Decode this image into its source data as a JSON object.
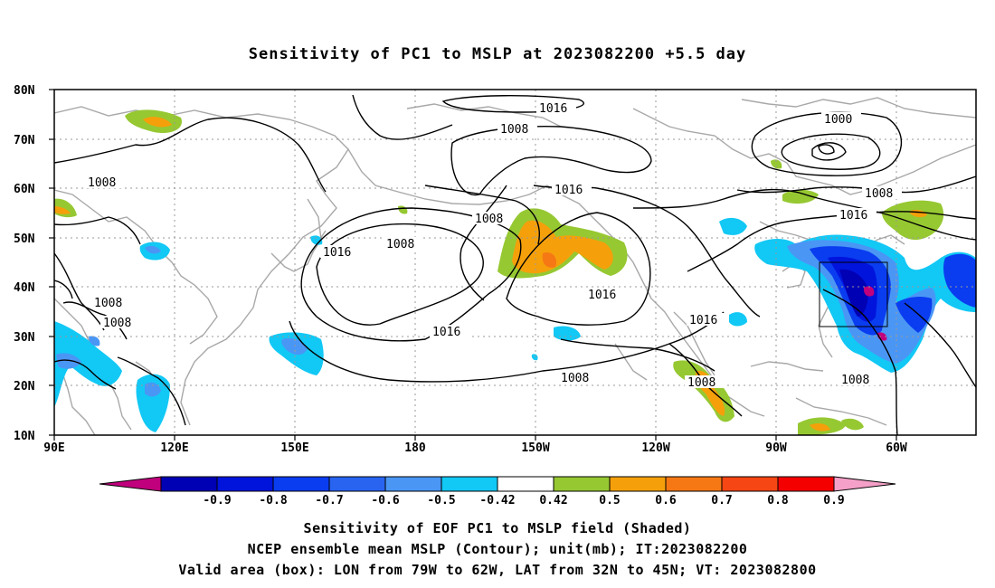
{
  "title": "Sensitivity of PC1 to MSLP at 2023082200 +5.5 day",
  "axes": {
    "lon_ticks": [
      "90E",
      "120E",
      "150E",
      "180",
      "150W",
      "120W",
      "90W",
      "60W"
    ],
    "lat_ticks": [
      "80N",
      "70N",
      "60N",
      "50N",
      "40N",
      "30N",
      "20N",
      "10N"
    ]
  },
  "contours": {
    "labels": [
      "1016",
      "1008",
      "1000",
      "1008",
      "1016",
      "1008",
      "1016",
      "1008",
      "1016",
      "1016",
      "1016",
      "1016",
      "1008",
      "1008",
      "1008",
      "1008",
      "1008"
    ]
  },
  "colorbar": {
    "labels": [
      "-0.9",
      "-0.8",
      "-0.7",
      "-0.6",
      "-0.5",
      "-0.42",
      "0.42",
      "0.5",
      "0.6",
      "0.7",
      "0.8",
      "0.9"
    ],
    "colors": [
      "#c0007c",
      "#0000b4",
      "#0014dc",
      "#0a3cf0",
      "#2864f0",
      "#4a96f5",
      "#12c8f5",
      "#ffffff",
      "#96c832",
      "#f5a00a",
      "#f57814",
      "#f54614",
      "#f50000",
      "#f5a0c8"
    ]
  },
  "captions": {
    "line1": "Sensitivity of EOF PC1 to MSLP field (Shaded)",
    "line2": "NCEP ensemble mean MSLP (Contour); unit(mb); IT:2023082200",
    "line3": "Valid area (box): LON from 79W to 62W, LAT from 32N to 45N; VT: 2023082800"
  },
  "valid_box": {
    "lon": [
      -79,
      -62
    ],
    "lat": [
      32,
      45
    ]
  }
}
